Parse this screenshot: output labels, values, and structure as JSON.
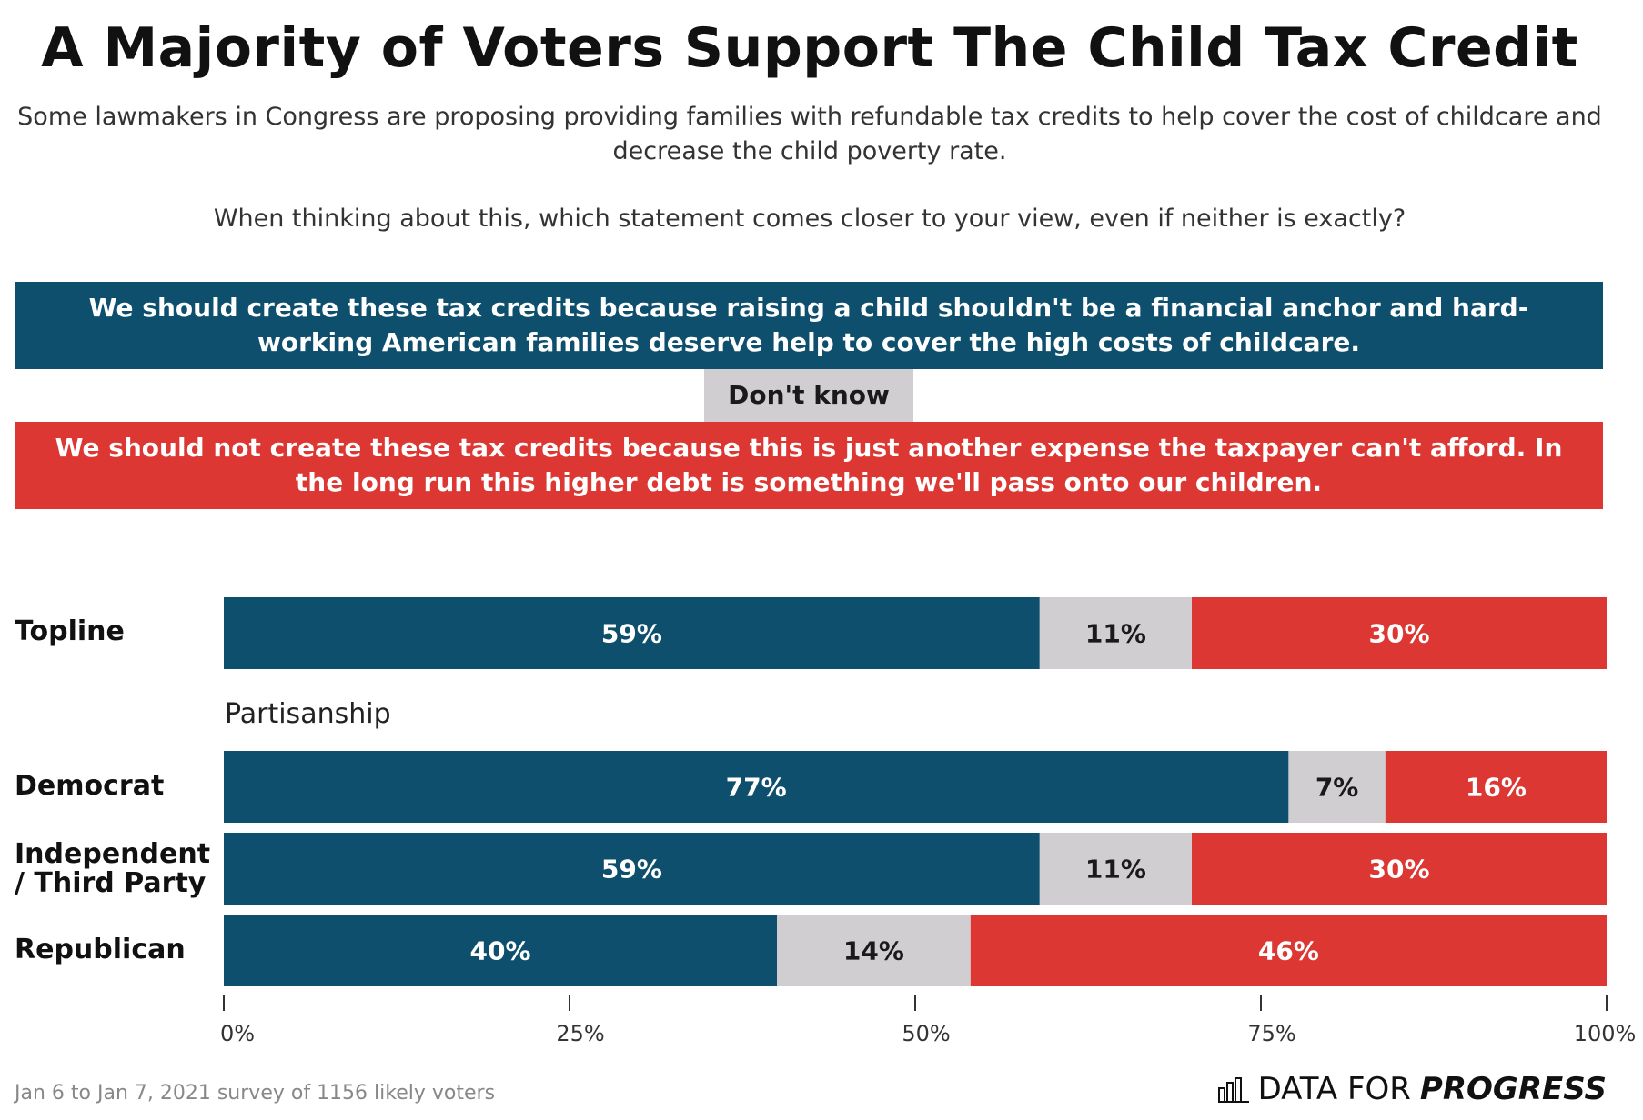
{
  "title": "A Majority of Voters Support The Child Tax Credit",
  "subtitle_line1": "Some lawmakers in Congress are proposing providing families with refundable tax credits to help cover the cost of childcare and decrease the child poverty rate.",
  "subtitle_line2": "When thinking about this, which statement comes closer to your view, even if neither is exactly?",
  "legend": {
    "support": "We should create these tax credits because raising a child shouldn't be a financial anchor and hard-working American families deserve help to cover the high costs of childcare.",
    "dont_know": "Don't know",
    "oppose": "We should not create these tax credits because this is just another expense the taxpayer can't afford. In the long run this higher debt is something we'll pass onto our children."
  },
  "colors": {
    "support": "#0d4f6c",
    "dont_know": "#d1ced1",
    "oppose": "#dc3733"
  },
  "footnote": "Jan 6 to Jan 7, 2021 survey of 1156 likely voters",
  "brand": {
    "data_for": "DATA FOR",
    "progress": "PROGRESS"
  },
  "chart_data": {
    "type": "bar",
    "orientation": "horizontal",
    "stacked": true,
    "section_label": "Partisanship",
    "categories": [
      "Topline",
      "Democrat",
      "Independent / Third Party",
      "Republican"
    ],
    "series": [
      {
        "name": "Support",
        "values": [
          59,
          77,
          59,
          40
        ]
      },
      {
        "name": "Don't know",
        "values": [
          11,
          7,
          11,
          14
        ]
      },
      {
        "name": "Oppose",
        "values": [
          30,
          16,
          30,
          46
        ]
      }
    ],
    "data_labels": [
      [
        "59%",
        "11%",
        "30%"
      ],
      [
        "77%",
        "7%",
        "16%"
      ],
      [
        "59%",
        "11%",
        "30%"
      ],
      [
        "40%",
        "14%",
        "46%"
      ]
    ],
    "xlim": [
      0,
      100
    ],
    "xticks": [
      "0%",
      "25%",
      "50%",
      "75%",
      "100%"
    ]
  }
}
